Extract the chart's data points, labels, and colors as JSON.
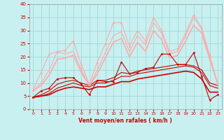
{
  "xlabel": "Vent moyen/en rafales ( km/h )",
  "xlim": [
    -0.5,
    23.5
  ],
  "ylim": [
    0,
    40
  ],
  "yticks": [
    0,
    5,
    10,
    15,
    20,
    25,
    30,
    35,
    40
  ],
  "xticks": [
    0,
    1,
    2,
    3,
    4,
    5,
    6,
    7,
    8,
    9,
    10,
    11,
    12,
    13,
    14,
    15,
    16,
    17,
    18,
    19,
    20,
    21,
    22,
    23
  ],
  "bg_color": "#c8f0f0",
  "grid_color": "#a0d8d8",
  "lines": [
    {
      "x": [
        0,
        1,
        2,
        3,
        4,
        5,
        6,
        7,
        8,
        9,
        10,
        11,
        12,
        13,
        14,
        15,
        16,
        17,
        18,
        19,
        20,
        21,
        22,
        23
      ],
      "y": [
        4.5,
        7,
        8,
        11.5,
        12,
        12,
        9.5,
        5.5,
        11,
        10.5,
        10.5,
        18,
        13.5,
        14,
        15.5,
        16,
        21,
        21,
        17,
        17,
        21.5,
        12.5,
        3.5,
        5.5
      ],
      "color": "#cc0000",
      "lw": 0.8,
      "marker": "o",
      "ms": 2.0,
      "zorder": 3
    },
    {
      "x": [
        0,
        1,
        2,
        3,
        4,
        5,
        6,
        7,
        8,
        9,
        10,
        11,
        12,
        13,
        14,
        15,
        16,
        17,
        18,
        19,
        20,
        21,
        22,
        23
      ],
      "y": [
        4.5,
        5,
        6,
        8,
        9,
        10,
        9,
        8.5,
        10,
        10,
        11,
        12.5,
        12.5,
        13.5,
        14,
        14.5,
        15,
        15.5,
        16,
        16.5,
        16,
        14,
        9,
        8
      ],
      "color": "#cc0000",
      "lw": 0.8,
      "marker": null,
      "ms": 0,
      "zorder": 2
    },
    {
      "x": [
        0,
        1,
        2,
        3,
        4,
        5,
        6,
        7,
        8,
        9,
        10,
        11,
        12,
        13,
        14,
        15,
        16,
        17,
        18,
        19,
        20,
        21,
        22,
        23
      ],
      "y": [
        4.5,
        5.5,
        7,
        9.5,
        10.5,
        11,
        10,
        9,
        11,
        11,
        12,
        14,
        13.5,
        14.5,
        15,
        15.5,
        16,
        16.5,
        17,
        17,
        16.5,
        15,
        10,
        9
      ],
      "color": "#cc0000",
      "lw": 0.8,
      "marker": null,
      "ms": 0,
      "zorder": 2
    },
    {
      "x": [
        0,
        1,
        2,
        3,
        4,
        5,
        6,
        7,
        8,
        9,
        10,
        11,
        12,
        13,
        14,
        15,
        16,
        17,
        18,
        19,
        20,
        21,
        22,
        23
      ],
      "y": [
        4.5,
        5,
        5.5,
        7,
        8,
        8.5,
        8,
        7.5,
        8.5,
        8.5,
        9.5,
        10.5,
        10.5,
        11.5,
        12,
        12.5,
        13,
        13.5,
        14,
        14.5,
        14,
        11.5,
        6.5,
        6.5
      ],
      "color": "#cc0000",
      "lw": 1.2,
      "marker": null,
      "ms": 0,
      "zorder": 2
    },
    {
      "x": [
        0,
        1,
        2,
        3,
        4,
        5,
        6,
        7,
        8,
        9,
        10,
        11,
        12,
        13,
        14,
        15,
        16,
        17,
        18,
        19,
        20,
        21,
        22,
        23
      ],
      "y": [
        7.5,
        14,
        21,
        22,
        22.5,
        26,
        17,
        9.5,
        18,
        25,
        33,
        33,
        24,
        30,
        26,
        35,
        30,
        22,
        23,
        29,
        36,
        31,
        20.5,
        9.5
      ],
      "color": "#ffaaaa",
      "lw": 0.8,
      "marker": "^",
      "ms": 2.5,
      "zorder": 3
    },
    {
      "x": [
        0,
        1,
        2,
        3,
        4,
        5,
        6,
        7,
        8,
        9,
        10,
        11,
        12,
        13,
        14,
        15,
        16,
        17,
        18,
        19,
        20,
        21,
        22,
        23
      ],
      "y": [
        7,
        10,
        15,
        22,
        21,
        22,
        15,
        9,
        15,
        21.5,
        28,
        29.5,
        22,
        28,
        24.5,
        33,
        29,
        21,
        22,
        28,
        35,
        30.5,
        20,
        9.5
      ],
      "color": "#ffaaaa",
      "lw": 0.8,
      "marker": null,
      "ms": 0,
      "zorder": 2
    },
    {
      "x": [
        0,
        1,
        2,
        3,
        4,
        5,
        6,
        7,
        8,
        9,
        10,
        11,
        12,
        13,
        14,
        15,
        16,
        17,
        18,
        19,
        20,
        21,
        22,
        23
      ],
      "y": [
        7,
        9,
        13,
        19,
        19.5,
        20.5,
        14,
        9,
        13.5,
        19.5,
        25.5,
        27,
        20,
        25.5,
        22,
        30,
        26.5,
        19.5,
        20.5,
        26,
        32,
        29,
        19,
        9.5
      ],
      "color": "#ffaaaa",
      "lw": 1.2,
      "marker": null,
      "ms": 0,
      "zorder": 2
    }
  ]
}
